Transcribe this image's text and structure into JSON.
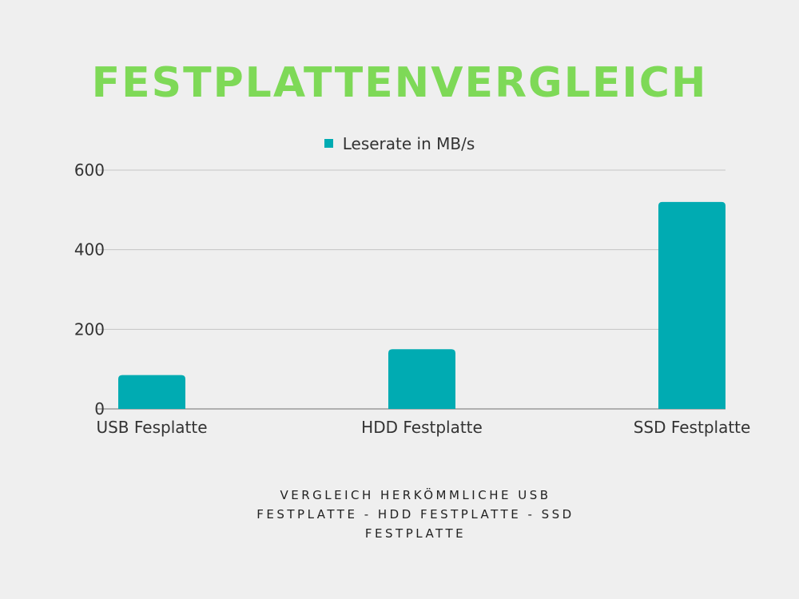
{
  "chart_data": {
    "type": "bar",
    "title": "FESTPLATTENVERGLEICH",
    "categories": [
      "USB Fesplatte",
      "HDD Festplatte",
      "SSD Festplatte"
    ],
    "series": [
      {
        "name": "Leserate in MB/s",
        "values": [
          85,
          150,
          520
        ]
      }
    ],
    "xlabel": "",
    "ylabel": "",
    "ylim": [
      0,
      600
    ],
    "yticks": [
      "0",
      "200",
      "400",
      "600"
    ],
    "ytick_values": [
      0,
      200,
      400,
      600
    ],
    "grid": true,
    "legend_position": "top-center",
    "bar_color": "#00abb2",
    "title_color": "#7ed957"
  },
  "caption": "Vergleich herkömmliche USB Festplatte - HDD Festplatte - SSD Festplatte"
}
